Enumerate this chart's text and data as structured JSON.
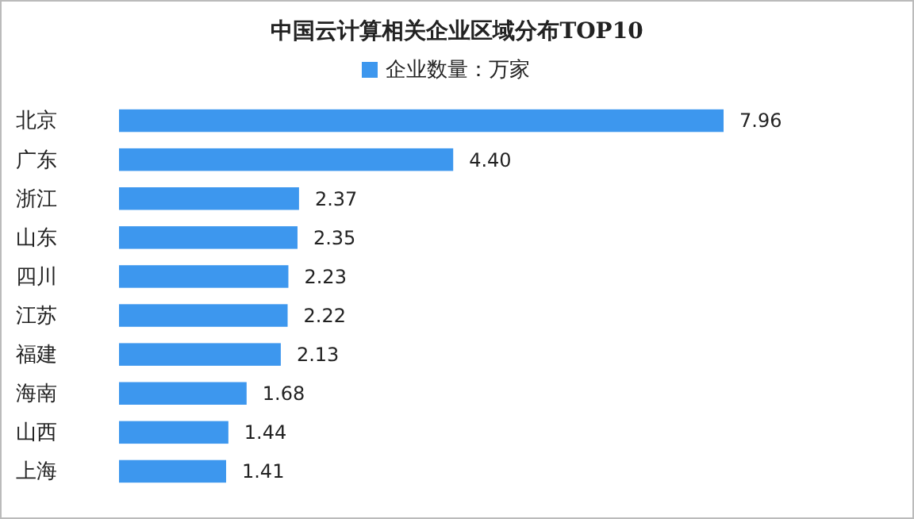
{
  "chart_data": {
    "type": "bar",
    "orientation": "horizontal",
    "title": "中国云计算相关企业区域分布TOP10",
    "categories": [
      "北京",
      "广东",
      "浙江",
      "山东",
      "四川",
      "江苏",
      "福建",
      "海南",
      "山西",
      "上海"
    ],
    "series": [
      {
        "name": "企业数量：万家",
        "color": "#3d97ee",
        "values": [
          7.96,
          4.4,
          2.37,
          2.35,
          2.23,
          2.22,
          2.13,
          1.68,
          1.44,
          1.41
        ],
        "value_labels": [
          "7.96",
          "4.40",
          "2.37",
          "2.35",
          "2.23",
          "2.22",
          "2.13",
          "1.68",
          "1.44",
          "1.41"
        ]
      }
    ],
    "legend": "top",
    "tick_labels": "y",
    "grid": false
  }
}
